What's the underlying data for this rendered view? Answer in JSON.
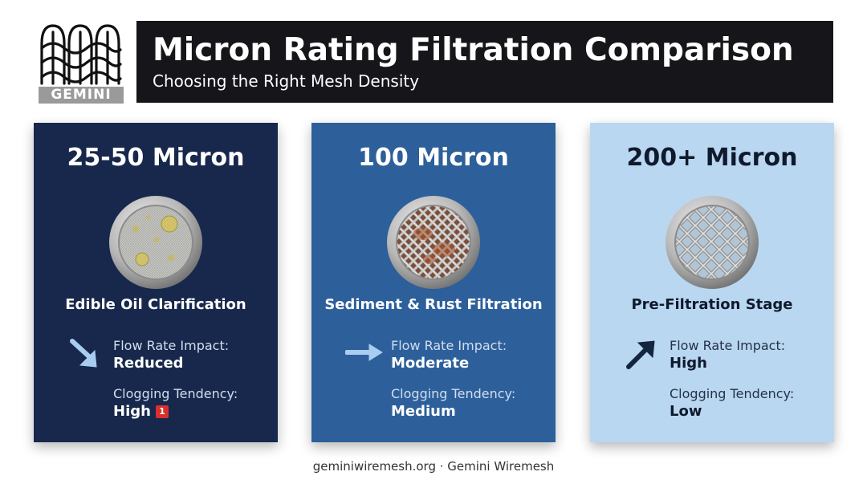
{
  "brand": {
    "logo_word": "GEMINI"
  },
  "header": {
    "title": "Micron Rating Filtration Comparison",
    "subtitle": "Choosing the Right Mesh Density"
  },
  "cards": [
    {
      "title": "25-50 Micron",
      "use_case": "Edible Oil Clarification",
      "flow_label": "Flow Rate Impact:",
      "flow_value": "Reduced",
      "flow_icon": "arrow-down-right-icon",
      "clog_label": "Clogging Tendency:",
      "clog_value": "High",
      "badge": "1",
      "color": "#17284c"
    },
    {
      "title": "100 Micron",
      "use_case": "Sediment & Rust Filtration",
      "flow_label": "Flow Rate Impact:",
      "flow_value": "Moderate",
      "flow_icon": "arrow-right-icon",
      "clog_label": "Clogging Tendency:",
      "clog_value": "Medium",
      "color": "#2d5f9b"
    },
    {
      "title": "200+ Micron",
      "use_case": "Pre-Filtration Stage",
      "flow_label": "Flow Rate Impact:",
      "flow_value": "High",
      "flow_icon": "arrow-up-right-icon",
      "clog_label": "Clogging Tendency:",
      "clog_value": "Low",
      "color": "#b9d7f1"
    }
  ],
  "footer": {
    "text": "geminiwiremesh.org · Gemini Wiremesh"
  }
}
